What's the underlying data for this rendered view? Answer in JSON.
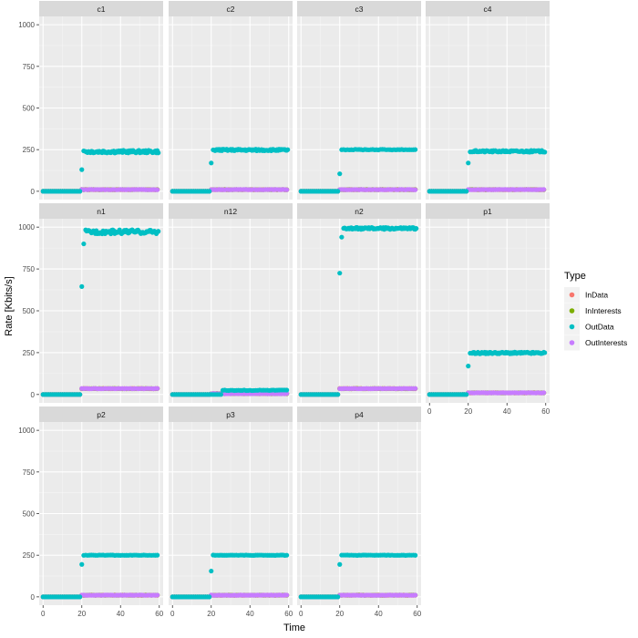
{
  "chart_data": {
    "type": "scatter",
    "xlabel": "Time",
    "ylabel": "Rate [Kbits/s]",
    "xlim": [
      -2,
      62
    ],
    "ylim": [
      -50,
      1050
    ],
    "x_ticks": [
      0,
      20,
      40,
      60
    ],
    "y_ticks": [
      0,
      250,
      500,
      750,
      1000
    ],
    "x_tick_labels": [
      "0",
      "20",
      "40",
      "60"
    ],
    "y_tick_labels": [
      "0",
      "250",
      "500",
      "750",
      "1000"
    ],
    "grid": true,
    "legend_position": "right",
    "legend": {
      "title": "Type",
      "entries": [
        {
          "name": "InData",
          "color": "#F8766D"
        },
        {
          "name": "InInterests",
          "color": "#7CAE00"
        },
        {
          "name": "OutData",
          "color": "#00BFC4"
        },
        {
          "name": "OutInterests",
          "color": "#C77CFF"
        }
      ]
    },
    "facet_layout": {
      "ncol": 4,
      "nrow": 3
    },
    "panels": [
      {
        "name": "c1",
        "outdata": {
          "start": 20,
          "first": 130,
          "level": 238,
          "noise": 8
        },
        "others": {
          "InData": 10,
          "InInterests": 10,
          "OutInterests": 10
        }
      },
      {
        "name": "c2",
        "outdata": {
          "start": 20,
          "first": 170,
          "level": 248,
          "noise": 5
        },
        "others": {
          "InData": 10,
          "InInterests": 10,
          "OutInterests": 10
        }
      },
      {
        "name": "c3",
        "outdata": {
          "start": 20,
          "first": 105,
          "level": 250,
          "noise": 2
        },
        "others": {
          "InData": 10,
          "InInterests": 10,
          "OutInterests": 10
        }
      },
      {
        "name": "c4",
        "outdata": {
          "start": 20,
          "first": 170,
          "level": 240,
          "noise": 5
        },
        "others": {
          "InData": 10,
          "InInterests": 10,
          "OutInterests": 10
        }
      },
      {
        "name": "n1",
        "outdata": {
          "start": 20,
          "first": 645,
          "second": 900,
          "level": 972,
          "noise": 12
        },
        "others": {
          "InData": 35,
          "InInterests": 35,
          "OutInterests": 35
        }
      },
      {
        "name": "n12",
        "outdata": {
          "start": 26,
          "first": 25,
          "level": 25,
          "noise": 2
        },
        "others": {
          "InData": 5,
          "InInterests": 5,
          "OutInterests": 5
        }
      },
      {
        "name": "n2",
        "outdata": {
          "start": 20,
          "first": 725,
          "second": 940,
          "level": 992,
          "noise": 6
        },
        "others": {
          "InData": 35,
          "InInterests": 35,
          "OutInterests": 35
        }
      },
      {
        "name": "p1",
        "outdata": {
          "start": 20,
          "first": 170,
          "level": 248,
          "noise": 5
        },
        "others": {
          "InData": 10,
          "InInterests": 10,
          "OutInterests": 10
        }
      },
      {
        "name": "p2",
        "outdata": {
          "start": 20,
          "first": 195,
          "level": 250,
          "noise": 1
        },
        "others": {
          "InData": 10,
          "InInterests": 10,
          "OutInterests": 10
        }
      },
      {
        "name": "p3",
        "outdata": {
          "start": 20,
          "first": 155,
          "level": 250,
          "noise": 1
        },
        "others": {
          "InData": 10,
          "InInterests": 10,
          "OutInterests": 10
        }
      },
      {
        "name": "p4",
        "outdata": {
          "start": 20,
          "first": 195,
          "level": 250,
          "noise": 1
        },
        "others": {
          "InData": 10,
          "InInterests": 10,
          "OutInterests": 10
        }
      }
    ],
    "time_range": [
      0,
      59
    ]
  }
}
